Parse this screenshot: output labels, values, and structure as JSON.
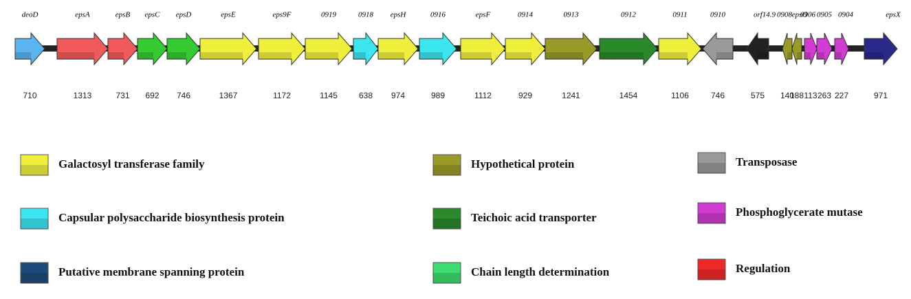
{
  "genes": [
    {
      "label": "deoD",
      "size": "710",
      "color": "#5ab4f0"
    },
    {
      "label": "epsA",
      "size": "1313",
      "color": "#f05a5a"
    },
    {
      "label": "epsB",
      "size": "731",
      "color": "#f05a5a"
    },
    {
      "label": "epsC",
      "size": "692",
      "color": "#33cc33"
    },
    {
      "label": "epsD",
      "size": "746",
      "color": "#33cc33"
    },
    {
      "label": "epsE",
      "size": "1367",
      "color": "#f0f03c"
    },
    {
      "label": "eps9F",
      "size": "1172",
      "color": "#f0f03c"
    },
    {
      "label": "0919",
      "size": "1145",
      "color": "#f0f03c"
    },
    {
      "label": "0918",
      "size": "638",
      "color": "#3ce6f0"
    },
    {
      "label": "epsH",
      "size": "974",
      "color": "#f0f03c"
    },
    {
      "label": "0916",
      "size": "989",
      "color": "#3ce6f0"
    },
    {
      "label": "epsF",
      "size": "1112",
      "color": "#f0f03c"
    },
    {
      "label": "0914",
      "size": "929",
      "color": "#f0f03c"
    },
    {
      "label": "0913",
      "size": "1241",
      "color": "#9a9a28"
    },
    {
      "label": "0912",
      "size": "1454",
      "color": "#2a8a2a"
    },
    {
      "label": "0911",
      "size": "1106",
      "color": "#f0f03c"
    },
    {
      "label": "0910",
      "size": "746",
      "color": "#9a9a9a"
    },
    {
      "label": "orf14.9",
      "size": "575",
      "color": "#222222"
    },
    {
      "label": "0908",
      "size": "140",
      "color": "#9a9a28"
    },
    {
      "label": "epsO",
      "size": "188",
      "color": "#9a9a28"
    },
    {
      "label": "0906",
      "size": "113",
      "color": "#d23cd2"
    },
    {
      "label": "0905",
      "size": "263",
      "color": "#d23cd2"
    },
    {
      "label": "0904",
      "size": "227",
      "color": "#d23cd2"
    },
    {
      "label": "epsX",
      "size": "971",
      "color": "#2a2a8a"
    }
  ],
  "legend": [
    {
      "label": "Galactosyl transferase family",
      "color": "#f0f03c"
    },
    {
      "label": "Capsular polysaccharide biosynthesis protein",
      "color": "#3ce6f0"
    },
    {
      "label": "Putative membrane spanning protein",
      "color": "#1e4a7a"
    },
    {
      "label": "Hypothetical protein",
      "color": "#9a9a28"
    },
    {
      "label": "Teichoic acid transporter",
      "color": "#2a8a2a"
    },
    {
      "label": "Chain length determination",
      "color": "#3cdc6e"
    },
    {
      "label": "Transposase",
      "color": "#9a9a9a"
    },
    {
      "label": "Phosphoglycerate mutase",
      "color": "#d23cd2"
    },
    {
      "label": "Regulation",
      "color": "#f02828"
    }
  ]
}
